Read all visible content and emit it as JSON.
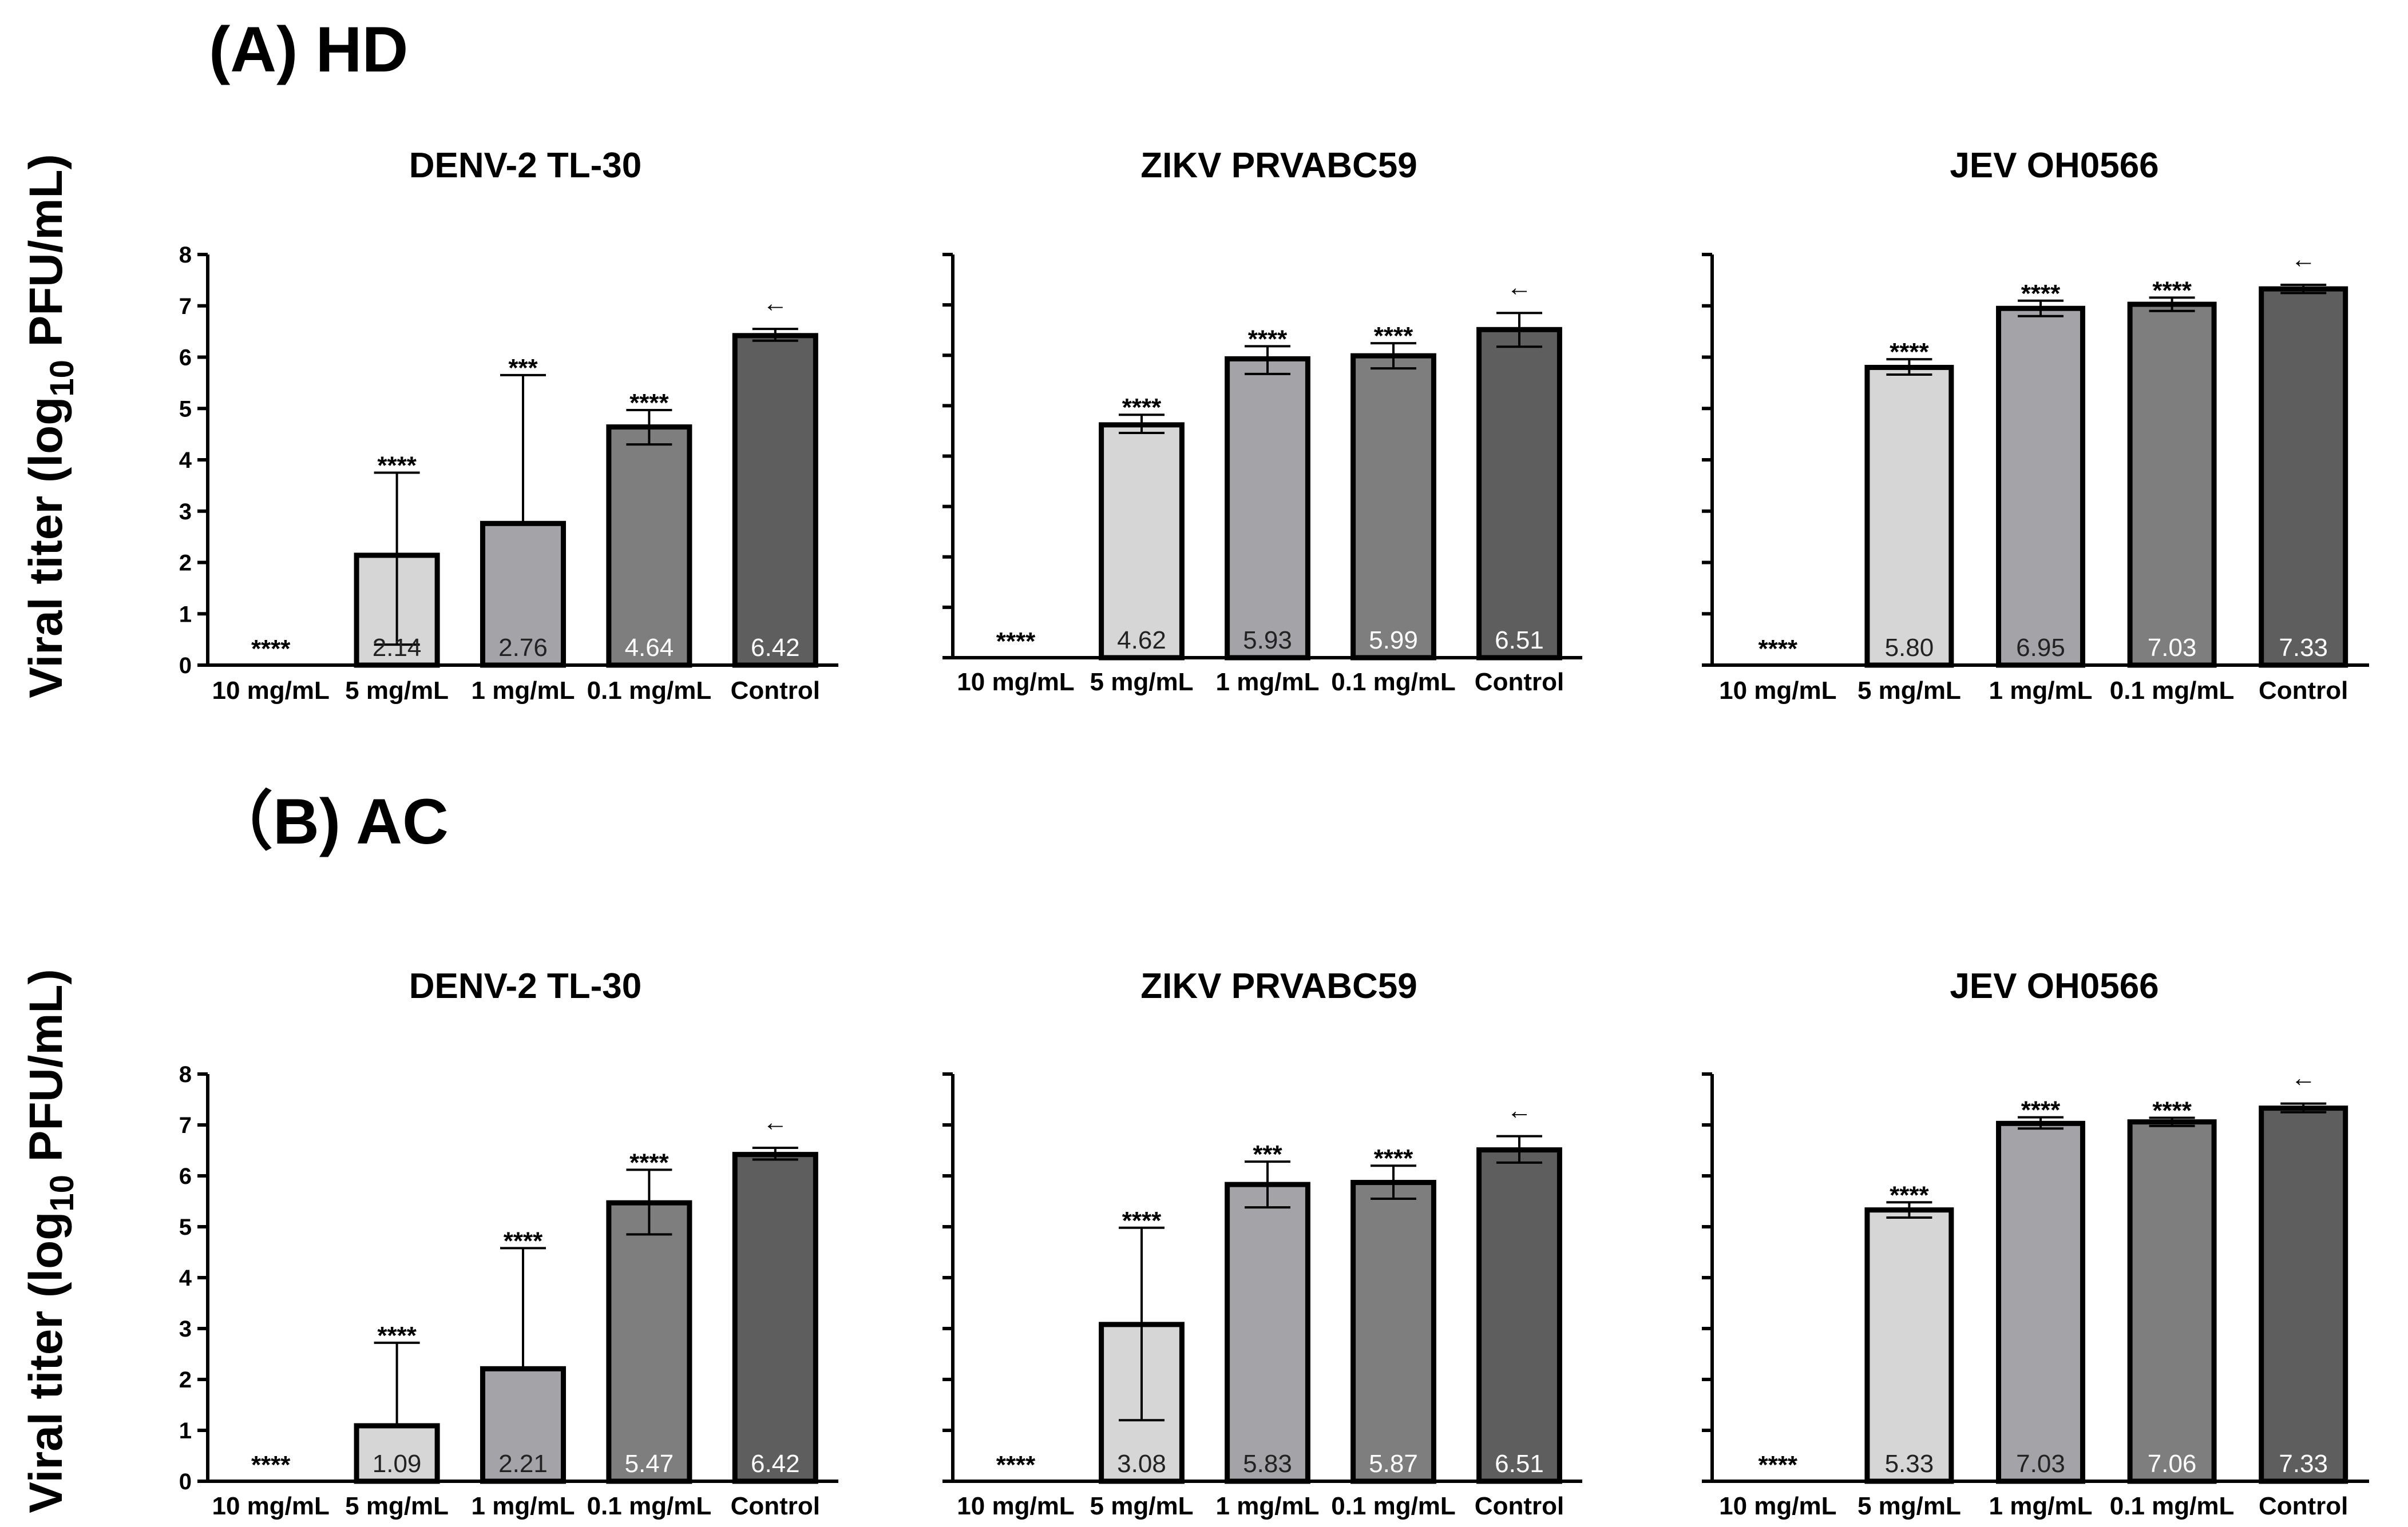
{
  "panels": [
    {
      "label": "(A) HD",
      "ylabel": "Viral titer (log",
      "ylabel_sub": "10",
      "ylabel_end": " PFU/mL)"
    },
    {
      "label": "（B) AC",
      "ylabel": "Viral titer (log",
      "ylabel_sub": "10",
      "ylabel_end": " PFU/mL)"
    }
  ],
  "colors": [
    "#ffffff",
    "#d6d6d6",
    "#a4a4a8",
    "#7e7e7e",
    "#5e5e5e"
  ],
  "chart_data": [
    {
      "type": "bar",
      "panel": "(A) HD",
      "title": "DENV-2 TL-30",
      "ylabel": "Viral titer (log10 PFU/mL)",
      "ylim": [
        0,
        8
      ],
      "yticks": [
        "0",
        "1",
        "2",
        "3",
        "4",
        "5",
        "6",
        "7",
        "8"
      ],
      "categories": [
        "10 mg/mL",
        "5 mg/mL",
        "1 mg/mL",
        "0.1 mg/mL",
        "Control"
      ],
      "values": [
        0,
        2.14,
        2.76,
        4.64,
        6.42
      ],
      "value_labels": [
        "",
        "2.14",
        "2.76",
        "4.64",
        "6.42"
      ],
      "error_low": [
        null,
        0.4,
        2.76,
        4.3,
        6.32
      ],
      "error_high": [
        null,
        3.75,
        5.65,
        4.97,
        6.55
      ],
      "significance": [
        "****",
        "****",
        "***",
        "****",
        ""
      ],
      "marker": "←"
    },
    {
      "type": "bar",
      "panel": "(A) HD",
      "title": "ZIKV PRVABC59",
      "ylabel": "Viral titer (log10 PFU/mL)",
      "ylim": [
        0,
        8
      ],
      "categories": [
        "10 mg/mL",
        "5 mg/mL",
        "1 mg/mL",
        "0.1 mg/mL",
        "Control"
      ],
      "values": [
        0,
        4.62,
        5.93,
        5.99,
        6.51
      ],
      "value_labels": [
        "",
        "4.62",
        "5.93",
        "5.99",
        "6.51"
      ],
      "error_low": [
        null,
        4.46,
        5.63,
        5.74,
        6.17
      ],
      "error_high": [
        null,
        4.82,
        6.18,
        6.24,
        6.84
      ],
      "significance": [
        "****",
        "****",
        "****",
        "****",
        ""
      ],
      "marker": "←"
    },
    {
      "type": "bar",
      "panel": "(A) HD",
      "title": "JEV OH0566",
      "ylabel": "Viral titer (log10 PFU/mL)",
      "ylim": [
        0,
        8
      ],
      "categories": [
        "10 mg/mL",
        "5 mg/mL",
        "1 mg/mL",
        "0.1 mg/mL",
        "Control"
      ],
      "values": [
        0,
        5.8,
        6.95,
        7.03,
        7.33
      ],
      "value_labels": [
        "",
        "5.80",
        "6.95",
        "7.03",
        "7.33"
      ],
      "error_low": [
        null,
        5.66,
        6.8,
        6.9,
        7.25
      ],
      "error_high": [
        null,
        5.96,
        7.1,
        7.16,
        7.41
      ],
      "significance": [
        "****",
        "****",
        "****",
        "****",
        ""
      ],
      "marker": "←"
    },
    {
      "type": "bar",
      "panel": "(B) AC",
      "title": "DENV-2 TL-30",
      "ylabel": "Viral titer (log10 PFU/mL)",
      "ylim": [
        0,
        8
      ],
      "yticks": [
        "0",
        "1",
        "2",
        "3",
        "4",
        "5",
        "6",
        "7",
        "8"
      ],
      "categories": [
        "10 mg/mL",
        "5 mg/mL",
        "1 mg/mL",
        "0.1 mg/mL",
        "Control"
      ],
      "values": [
        0,
        1.09,
        2.21,
        5.47,
        6.42
      ],
      "value_labels": [
        "",
        "1.09",
        "2.21",
        "5.47",
        "6.42"
      ],
      "error_low": [
        null,
        1.09,
        2.21,
        4.85,
        6.32
      ],
      "error_high": [
        null,
        2.72,
        4.58,
        6.12,
        6.55
      ],
      "significance": [
        "****",
        "****",
        "****",
        "****",
        ""
      ],
      "marker": "←"
    },
    {
      "type": "bar",
      "panel": "(B) AC",
      "title": "ZIKV PRVABC59",
      "ylabel": "Viral titer (log10 PFU/mL)",
      "ylim": [
        0,
        8
      ],
      "categories": [
        "10 mg/mL",
        "5 mg/mL",
        "1 mg/mL",
        "0.1 mg/mL",
        "Control"
      ],
      "values": [
        0,
        3.08,
        5.83,
        5.87,
        6.51
      ],
      "value_labels": [
        "",
        "3.08",
        "5.83",
        "5.87",
        "6.51"
      ],
      "error_low": [
        null,
        1.2,
        5.38,
        5.55,
        6.26
      ],
      "error_high": [
        null,
        4.98,
        6.28,
        6.2,
        6.78
      ],
      "significance": [
        "****",
        "****",
        "***",
        "****",
        ""
      ],
      "marker": "←"
    },
    {
      "type": "bar",
      "panel": "(B) AC",
      "title": "JEV OH0566",
      "ylabel": "Viral titer (log10 PFU/mL)",
      "ylim": [
        0,
        8
      ],
      "categories": [
        "10 mg/mL",
        "5 mg/mL",
        "1 mg/mL",
        "0.1 mg/mL",
        "Control"
      ],
      "values": [
        0,
        5.33,
        7.03,
        7.06,
        7.33
      ],
      "value_labels": [
        "",
        "5.33",
        "7.03",
        "7.06",
        "7.33"
      ],
      "error_low": [
        null,
        5.18,
        6.93,
        6.98,
        7.25
      ],
      "error_high": [
        null,
        5.48,
        7.15,
        7.14,
        7.42
      ],
      "significance": [
        "****",
        "****",
        "****",
        "****",
        ""
      ],
      "marker": "←"
    }
  ]
}
